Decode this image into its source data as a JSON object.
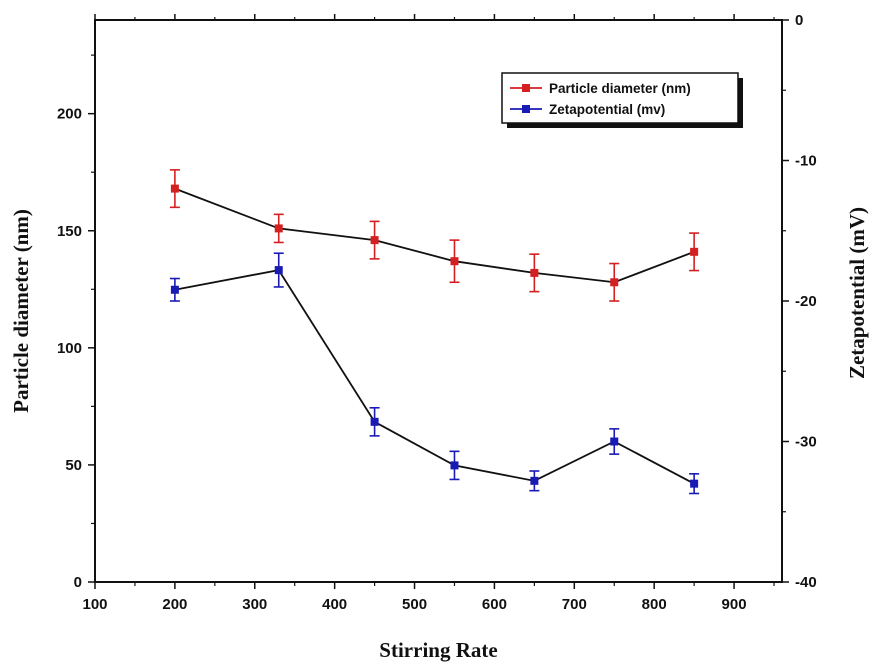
{
  "chart_data": {
    "type": "line",
    "xlabel": "Stirring Rate",
    "ylabel_left": "Particle diameter (nm)",
    "ylabel_right": "Zetapotential (mV)",
    "x_ticks": [
      "100",
      "200",
      "300",
      "400",
      "500",
      "600",
      "700",
      "800",
      "900"
    ],
    "y_left_ticks": [
      "0",
      "50",
      "100",
      "150",
      "200"
    ],
    "y_right_ticks": [
      "0",
      "-10",
      "-20",
      "-30",
      "-40"
    ],
    "xlim": [
      100,
      960
    ],
    "ylim_left": [
      0,
      240
    ],
    "ylim_right": [
      -40,
      0
    ],
    "x": [
      200,
      330,
      450,
      550,
      650,
      750,
      850
    ],
    "series": [
      {
        "name": "Particle diameter (nm)",
        "axis": "left",
        "color": "#d42020",
        "values": [
          168,
          151,
          146,
          137,
          132,
          128,
          141
        ],
        "errors": [
          8,
          6,
          8,
          9,
          8,
          8,
          8
        ]
      },
      {
        "name": "Zetapotential (mv)",
        "axis": "right",
        "color": "#1a1ab4",
        "values": [
          -19.2,
          -17.8,
          -28.6,
          -31.7,
          -32.8,
          -30.0,
          -33.0
        ],
        "errors": [
          0.8,
          1.2,
          1.0,
          1.0,
          0.7,
          0.9,
          0.7
        ]
      }
    ],
    "legend": "top-right",
    "grid": false
  }
}
